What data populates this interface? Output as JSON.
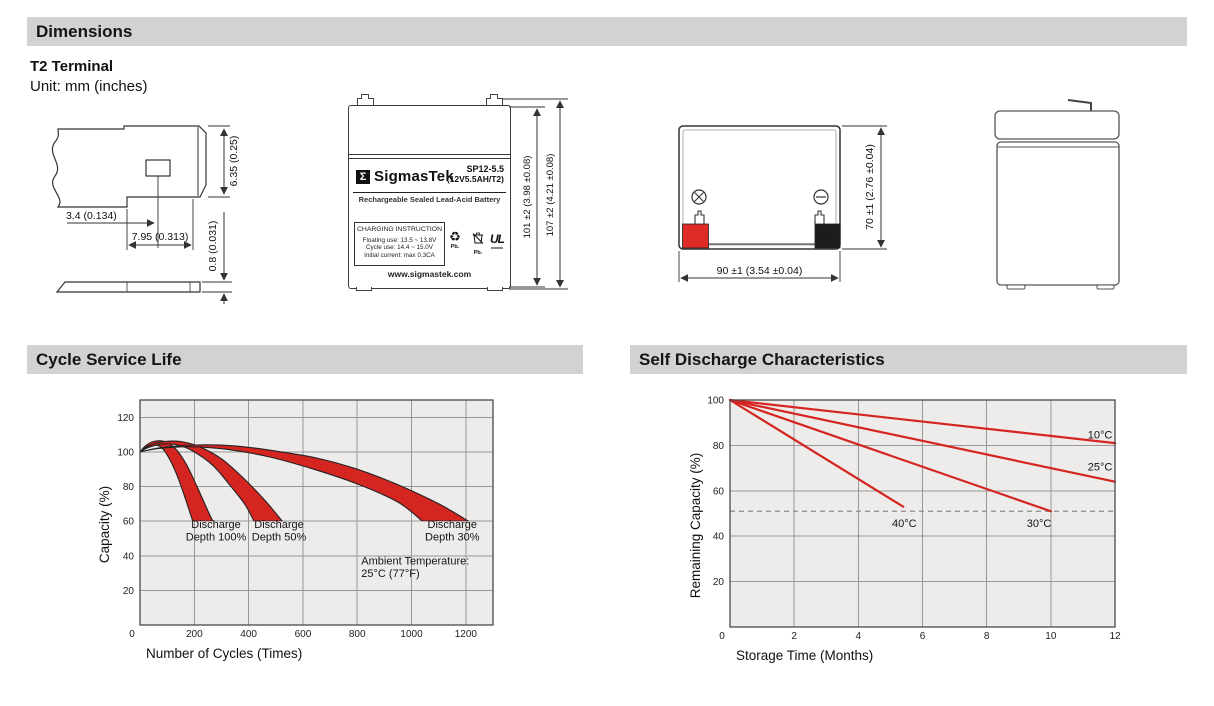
{
  "sections": {
    "dimensions": {
      "title": "Dimensions",
      "subtitle": "T2 Terminal",
      "unit": "Unit: mm (inches)"
    },
    "cycle": {
      "title": "Cycle Service Life"
    },
    "self_discharge": {
      "title": "Self Discharge Characteristics"
    }
  },
  "drawings": {
    "terminal_detail": {
      "dim_offset": "3.4 (0.134)",
      "dim_tab_width": "7.95 (0.313)",
      "dim_tab_height": "6.35 (0.25)",
      "dim_thickness": "0.8 (0.031)"
    },
    "front_view": {
      "logo_glyph": "Σ",
      "brand": "SigmasTek",
      "model": "SP12-5.5",
      "spec": "(12V5.5AH/T2)",
      "type_line": "Rechargeable Sealed Lead-Acid Battery",
      "charging_title": "CHARGING INSTRUCTION",
      "charging_line1": "Floating use: 13.5 ~ 13.8V",
      "charging_line2": "Cycle use: 14.4 ~ 15.0V",
      "charging_line3": "Initial current: max 0.3CA",
      "recycle_glyph": "♻",
      "pb_recycle_label": "Pb.",
      "pb_bin_label": "Pb.",
      "ul_mark": "UL",
      "website": "www.sigmastek.com",
      "dim_height_case": "101 ±2 (3.98 ±0.08)",
      "dim_height_total": "107 ±2 (4.21 ±0.08)"
    },
    "top_view": {
      "dim_width": "90 ±1 (3.54 ±0.04)",
      "dim_depth": "70 ±1 (2.76 ±0.04)"
    }
  },
  "chart_data": [
    {
      "type": "area",
      "title": "Cycle Service Life",
      "xlabel": "Number of Cycles (Times)",
      "ylabel": "Capacity (%)",
      "xlim": [
        0,
        1300
      ],
      "ylim": [
        0,
        130
      ],
      "xticks": [
        0,
        200,
        400,
        600,
        800,
        1000,
        1200
      ],
      "yticks": [
        0,
        20,
        40,
        60,
        80,
        100,
        120
      ],
      "grid": true,
      "band_color": "#d42521",
      "plot_bg": "#edecea",
      "series": [
        {
          "name": "Discharge Depth 100%",
          "upper": [
            [
              0,
              100
            ],
            [
              20,
              103.5
            ],
            [
              50,
              106
            ],
            [
              90,
              106
            ],
            [
              130,
              102
            ],
            [
              170,
              93
            ],
            [
              210,
              80
            ],
            [
              250,
              66
            ],
            [
              268,
              60
            ]
          ],
          "lower": [
            [
              0,
              100
            ],
            [
              15,
              102
            ],
            [
              40,
              104
            ],
            [
              75,
              103
            ],
            [
              105,
              97
            ],
            [
              135,
              87
            ],
            [
              165,
              74
            ],
            [
              190,
              62
            ],
            [
              196,
              60
            ]
          ]
        },
        {
          "name": "Discharge Depth 50%",
          "upper": [
            [
              0,
              100
            ],
            [
              40,
              104
            ],
            [
              90,
              106
            ],
            [
              150,
              106
            ],
            [
              220,
              103
            ],
            [
              300,
              96
            ],
            [
              380,
              85
            ],
            [
              460,
              72
            ],
            [
              524,
              60
            ]
          ],
          "lower": [
            [
              0,
              100
            ],
            [
              30,
              102.5
            ],
            [
              80,
              104.5
            ],
            [
              140,
              104
            ],
            [
              200,
              100
            ],
            [
              270,
              92
            ],
            [
              330,
              81
            ],
            [
              385,
              70
            ],
            [
              420,
              60
            ]
          ]
        },
        {
          "name": "Discharge Depth 30%",
          "upper": [
            [
              0,
              100
            ],
            [
              80,
              102.5
            ],
            [
              200,
              104
            ],
            [
              350,
              103.5
            ],
            [
              500,
              100.5
            ],
            [
              650,
              96.5
            ],
            [
              800,
              90
            ],
            [
              950,
              81
            ],
            [
              1100,
              70
            ],
            [
              1210,
              60
            ]
          ],
          "lower": [
            [
              0,
              100
            ],
            [
              70,
              102
            ],
            [
              180,
              103
            ],
            [
              320,
              101.5
            ],
            [
              480,
              97
            ],
            [
              640,
              90
            ],
            [
              800,
              81.5
            ],
            [
              950,
              71
            ],
            [
              1040,
              60
            ]
          ]
        }
      ],
      "annotations": [
        {
          "lines": [
            "Discharge",
            "Depth 100%"
          ],
          "x": 280,
          "y": 56,
          "anchor": "middle"
        },
        {
          "lines": [
            "Discharge",
            "Depth 50%"
          ],
          "x": 512,
          "y": 56,
          "anchor": "middle"
        },
        {
          "lines": [
            "Discharge",
            "Depth 30%"
          ],
          "x": 1150,
          "y": 56,
          "anchor": "middle"
        },
        {
          "lines": [
            "Ambient Temperature:",
            "25°C (77°F)"
          ],
          "x": 815,
          "y": 35,
          "anchor": "start"
        }
      ]
    },
    {
      "type": "line",
      "title": "Self Discharge Characteristics",
      "xlabel": "Storage Time (Months)",
      "ylabel": "Remaining Capacity (%)",
      "xlim": [
        0,
        12
      ],
      "ylim": [
        0,
        100
      ],
      "xticks": [
        0,
        2,
        4,
        6,
        8,
        10,
        12
      ],
      "yticks": [
        0,
        20,
        40,
        60,
        80,
        100
      ],
      "grid": true,
      "line_color": "#d42521",
      "plot_bg": "#edecea",
      "dashed_line_y": 51,
      "series": [
        {
          "name": "10°C",
          "points": [
            [
              0,
              100
            ],
            [
              12,
              81
            ]
          ],
          "label_xy": [
            11.15,
            83
          ]
        },
        {
          "name": "25°C",
          "points": [
            [
              0,
              100
            ],
            [
              12,
              64
            ]
          ],
          "label_xy": [
            11.15,
            69
          ]
        },
        {
          "name": "30°C",
          "points": [
            [
              0,
              100
            ],
            [
              10,
              51
            ]
          ],
          "label_xy": [
            9.25,
            44
          ]
        },
        {
          "name": "40°C",
          "points": [
            [
              0,
              100
            ],
            [
              5.4,
              53
            ]
          ],
          "label_xy": [
            5.05,
            44
          ]
        }
      ]
    }
  ]
}
